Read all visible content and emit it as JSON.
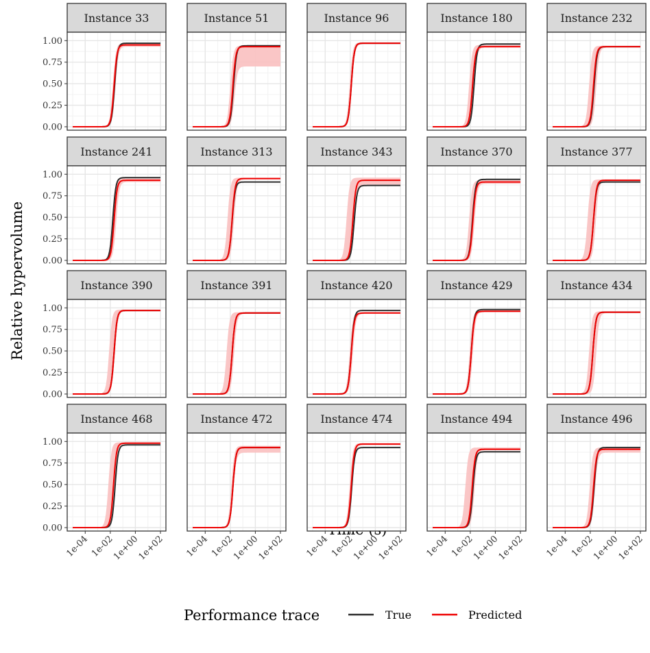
{
  "chart_data": {
    "type": "line",
    "xlabel": "Time (s)",
    "ylabel": "Relative hypervolume",
    "x_scale": "log10",
    "xlim": [
      "1e-05",
      "1e+02"
    ],
    "ylim": [
      0,
      1.05
    ],
    "x_ticks": [
      "1e-04",
      "1e-02",
      "1e+00",
      "1e+02"
    ],
    "y_ticks": [
      "0.00",
      "0.25",
      "0.50",
      "0.75",
      "1.00"
    ],
    "grid": true,
    "legend": {
      "title": "Performance trace",
      "position": "bottom",
      "entries": [
        {
          "label": "True",
          "color": "#2b2b2b"
        },
        {
          "label": "Predicted",
          "color": "#ee0000"
        }
      ]
    },
    "band_color": "#f9c0c0",
    "panels": [
      {
        "title": "Instance 33",
        "true_final": 0.97,
        "true_mid": 0.022,
        "pred_final": 0.95,
        "pred_mid": 0.02,
        "band_lo_final": 0.93,
        "band_hi_final": 0.97,
        "band_lo_mid": 0.026,
        "band_hi_mid": 0.016
      },
      {
        "title": "Instance 51",
        "true_final": 0.94,
        "true_mid": 0.018,
        "pred_final": 0.93,
        "pred_mid": 0.016,
        "band_lo_final": 0.7,
        "band_hi_final": 0.94,
        "band_lo_mid": 0.022,
        "band_hi_mid": 0.01
      },
      {
        "title": "Instance 96",
        "true_final": 0.97,
        "true_mid": 0.012,
        "pred_final": 0.97,
        "pred_mid": 0.012,
        "band_lo_final": 0.96,
        "band_hi_final": 0.98,
        "band_lo_mid": 0.014,
        "band_hi_mid": 0.009
      },
      {
        "title": "Instance 180",
        "true_final": 0.96,
        "true_mid": 0.02,
        "pred_final": 0.93,
        "pred_mid": 0.015,
        "band_lo_final": 0.92,
        "band_hi_final": 0.95,
        "band_lo_mid": 0.021,
        "band_hi_mid": 0.008
      },
      {
        "title": "Instance 232",
        "true_final": 0.93,
        "true_mid": 0.02,
        "pred_final": 0.93,
        "pred_mid": 0.018,
        "band_lo_final": 0.92,
        "band_hi_final": 0.94,
        "band_lo_mid": 0.03,
        "band_hi_mid": 0.008
      },
      {
        "title": "Instance 241",
        "true_final": 0.96,
        "true_mid": 0.016,
        "pred_final": 0.93,
        "pred_mid": 0.02,
        "band_lo_final": 0.91,
        "band_hi_final": 0.95,
        "band_lo_mid": 0.03,
        "band_hi_mid": 0.014
      },
      {
        "title": "Instance 313",
        "true_final": 0.91,
        "true_mid": 0.014,
        "pred_final": 0.95,
        "pred_mid": 0.014,
        "band_lo_final": 0.94,
        "band_hi_final": 0.96,
        "band_lo_mid": 0.02,
        "band_hi_mid": 0.006
      },
      {
        "title": "Instance 343",
        "true_final": 0.87,
        "true_mid": 0.02,
        "pred_final": 0.93,
        "pred_mid": 0.016,
        "band_lo_final": 0.88,
        "band_hi_final": 0.96,
        "band_lo_mid": 0.022,
        "band_hi_mid": 0.005
      },
      {
        "title": "Instance 370",
        "true_final": 0.94,
        "true_mid": 0.015,
        "pred_final": 0.91,
        "pred_mid": 0.016,
        "band_lo_final": 0.89,
        "band_hi_final": 0.93,
        "band_lo_mid": 0.022,
        "band_hi_mid": 0.008
      },
      {
        "title": "Instance 377",
        "true_final": 0.91,
        "true_mid": 0.018,
        "pred_final": 0.93,
        "pred_mid": 0.018,
        "band_lo_final": 0.92,
        "band_hi_final": 0.94,
        "band_lo_mid": 0.028,
        "band_hi_mid": 0.006
      },
      {
        "title": "Instance 390",
        "true_final": 0.97,
        "true_mid": 0.02,
        "pred_final": 0.97,
        "pred_mid": 0.02,
        "band_lo_final": 0.96,
        "band_hi_final": 0.98,
        "band_lo_mid": 0.024,
        "band_hi_mid": 0.008
      },
      {
        "title": "Instance 391",
        "true_final": 0.94,
        "true_mid": 0.014,
        "pred_final": 0.94,
        "pred_mid": 0.014,
        "band_lo_final": 0.93,
        "band_hi_final": 0.95,
        "band_lo_mid": 0.02,
        "band_hi_mid": 0.005
      },
      {
        "title": "Instance 420",
        "true_final": 0.97,
        "true_mid": 0.012,
        "pred_final": 0.94,
        "pred_mid": 0.012,
        "band_lo_final": 0.93,
        "band_hi_final": 0.95,
        "band_lo_mid": 0.016,
        "band_hi_mid": 0.009
      },
      {
        "title": "Instance 429",
        "true_final": 0.98,
        "true_mid": 0.012,
        "pred_final": 0.96,
        "pred_mid": 0.012,
        "band_lo_final": 0.95,
        "band_hi_final": 0.97,
        "band_lo_mid": 0.016,
        "band_hi_mid": 0.009
      },
      {
        "title": "Instance 434",
        "true_final": 0.95,
        "true_mid": 0.016,
        "pred_final": 0.95,
        "pred_mid": 0.016,
        "band_lo_final": 0.94,
        "band_hi_final": 0.96,
        "band_lo_mid": 0.03,
        "band_hi_mid": 0.008
      },
      {
        "title": "Instance 468",
        "true_final": 0.96,
        "true_mid": 0.024,
        "pred_final": 0.98,
        "pred_mid": 0.018,
        "band_lo_final": 0.97,
        "band_hi_final": 0.99,
        "band_lo_mid": 0.022,
        "band_hi_mid": 0.007
      },
      {
        "title": "Instance 472",
        "true_final": 0.93,
        "true_mid": 0.016,
        "pred_final": 0.93,
        "pred_mid": 0.016,
        "band_lo_final": 0.87,
        "band_hi_final": 0.95,
        "band_lo_mid": 0.018,
        "band_hi_mid": 0.012
      },
      {
        "title": "Instance 474",
        "true_final": 0.93,
        "true_mid": 0.013,
        "pred_final": 0.97,
        "pred_mid": 0.012,
        "band_lo_final": 0.96,
        "band_hi_final": 0.98,
        "band_lo_mid": 0.015,
        "band_hi_mid": 0.009
      },
      {
        "title": "Instance 494",
        "true_final": 0.88,
        "true_mid": 0.016,
        "pred_final": 0.91,
        "pred_mid": 0.014,
        "band_lo_final": 0.9,
        "band_hi_final": 0.93,
        "band_lo_mid": 0.022,
        "band_hi_mid": 0.004
      },
      {
        "title": "Instance 496",
        "true_final": 0.93,
        "true_mid": 0.02,
        "pred_final": 0.91,
        "pred_mid": 0.018,
        "band_lo_final": 0.87,
        "band_hi_final": 0.93,
        "band_lo_mid": 0.024,
        "band_hi_mid": 0.009
      }
    ]
  }
}
